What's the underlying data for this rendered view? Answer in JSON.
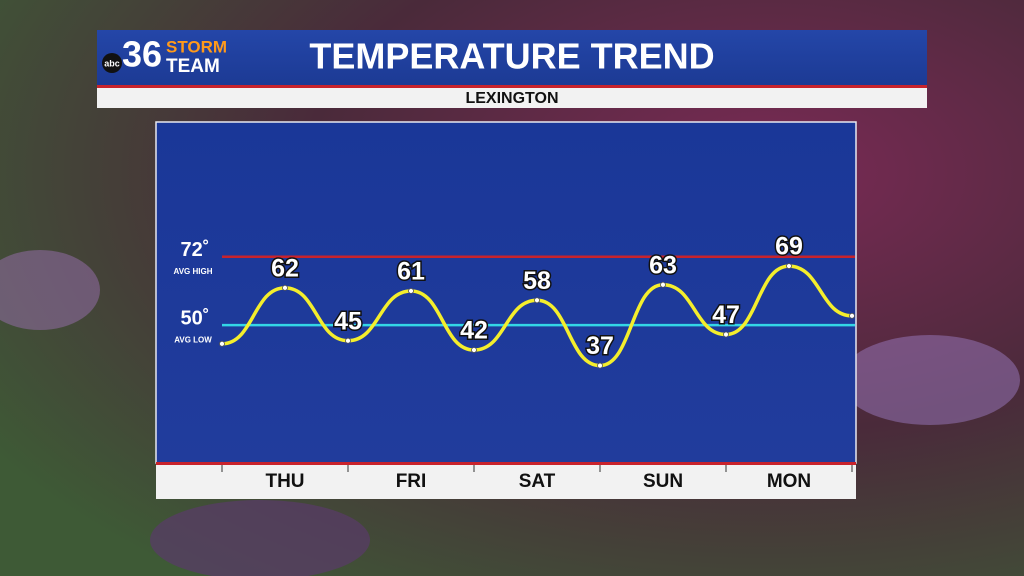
{
  "header": {
    "logo_network": "abc",
    "logo_number": "36",
    "logo_top": "STORM",
    "logo_bottom": "TEAM",
    "title": "TEMPERATURE TREND",
    "subtitle": "LEXINGTON"
  },
  "chart_data": {
    "type": "line",
    "categories": [
      null,
      "THU",
      null,
      "FRI",
      null,
      "SAT",
      null,
      "SUN",
      null,
      "MON",
      null
    ],
    "values": [
      44,
      62,
      45,
      61,
      42,
      58,
      37,
      63,
      47,
      69,
      53
    ],
    "value_labels": [
      null,
      "62",
      "45",
      "61",
      "42",
      "58",
      "37",
      "63",
      "47",
      "69",
      null
    ],
    "color": "#f4ee2c",
    "ylim": [
      6,
      115
    ],
    "reference_lines": [
      {
        "value": 72,
        "label": "72˚",
        "name": "AVG HIGH",
        "color": "#c8232c"
      },
      {
        "value": 50,
        "label": "50˚",
        "name": "AVG LOW",
        "color": "#33d6e6"
      }
    ]
  }
}
